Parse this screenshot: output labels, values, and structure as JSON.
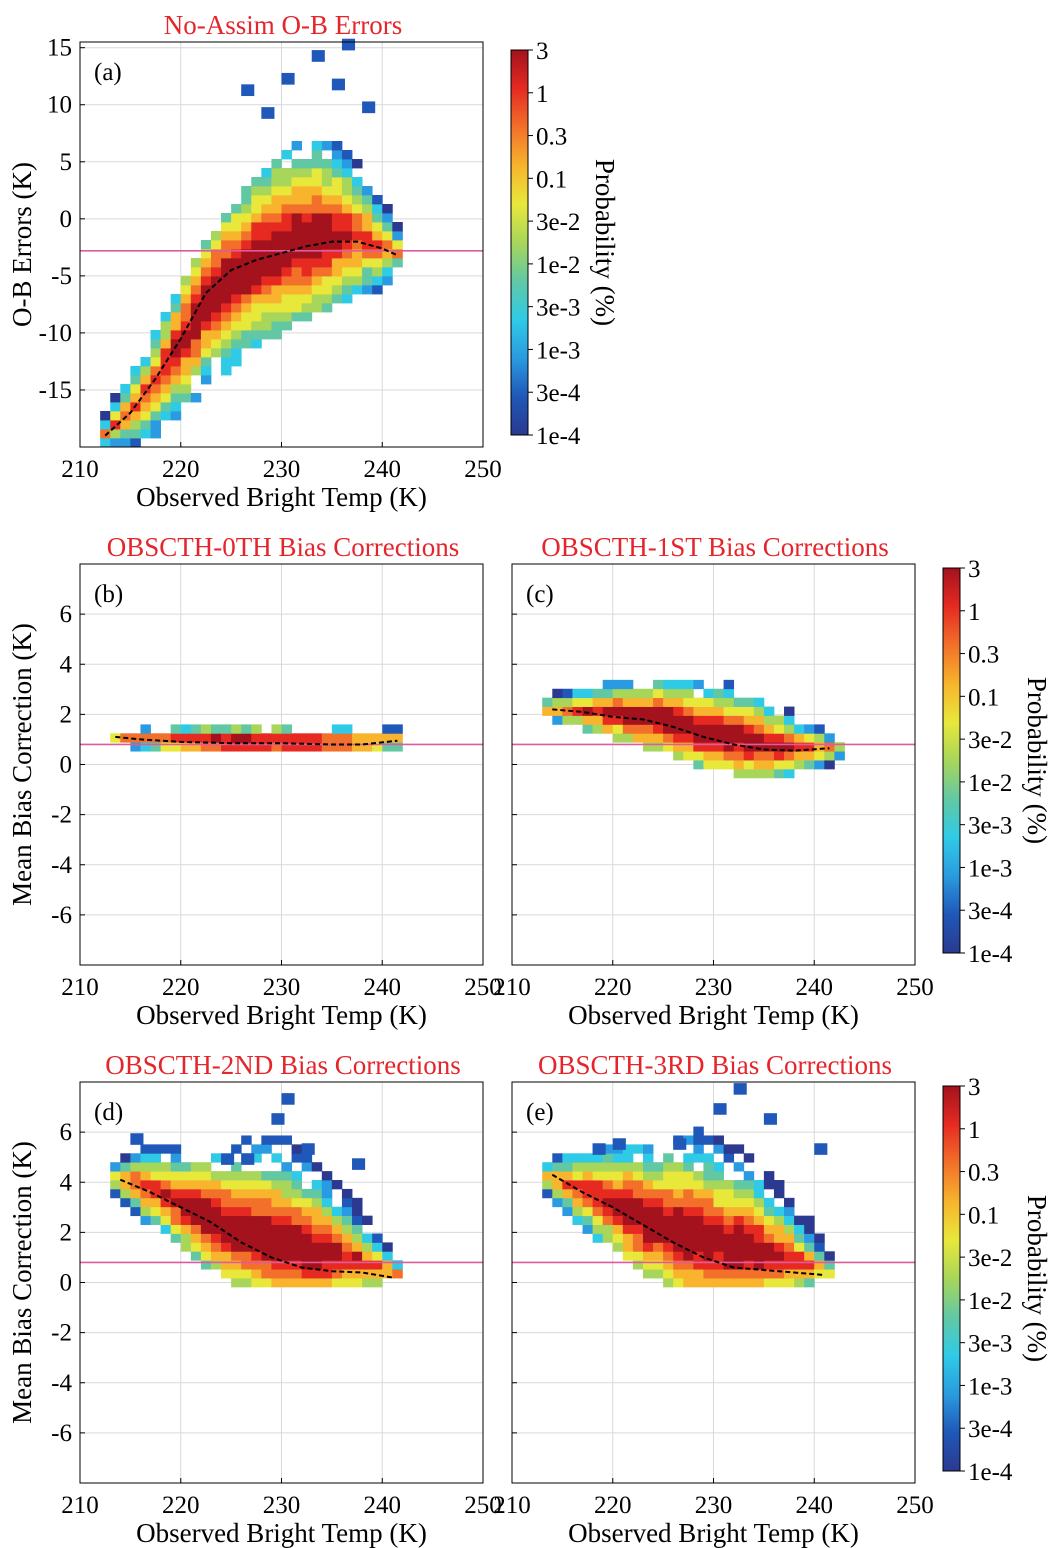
{
  "colorbar": {
    "label": "Probability (%)",
    "ticks": [
      "3",
      "1",
      "0.3",
      "0.1",
      "3e-2",
      "1e-2",
      "3e-3",
      "1e-3",
      "3e-4",
      "1e-4"
    ],
    "colors": [
      "#2b3990",
      "#1f58b8",
      "#2a9be0",
      "#2fcbe6",
      "#62c8a4",
      "#a8d65a",
      "#e8e83a",
      "#f7b42c",
      "#f2702a",
      "#e62a22",
      "#a3121d"
    ]
  },
  "colors": {
    "title": "#e4262c",
    "reference_line": "#e05a9c",
    "mean_line": "#000000",
    "grid": "#d9d9d9"
  },
  "chart_data": [
    {
      "id": "a",
      "type": "heatmap",
      "title": "No-Assim O-B Errors",
      "panel_label": "(a)",
      "xlabel": "Observed Bright Temp (K)",
      "ylabel": "O-B Errors (K)",
      "xlim": [
        210,
        250
      ],
      "ylim": [
        -20,
        15.5
      ],
      "xticks": [
        210,
        220,
        230,
        240,
        250
      ],
      "yticks": [
        -15,
        -10,
        -5,
        0,
        5,
        10,
        15
      ],
      "reference_line_y": -2.8,
      "mean_curve": [
        [
          212.5,
          -19
        ],
        [
          215,
          -17
        ],
        [
          217.5,
          -14
        ],
        [
          220,
          -10.5
        ],
        [
          222.5,
          -6.5
        ],
        [
          225,
          -4.5
        ],
        [
          227.5,
          -3.6
        ],
        [
          230,
          -3
        ],
        [
          232.5,
          -2.4
        ],
        [
          235,
          -2
        ],
        [
          237.5,
          -2
        ],
        [
          240,
          -2.6
        ],
        [
          241.5,
          -3.2
        ]
      ],
      "shape": [
        [
          212.5,
          -20,
          -17
        ],
        [
          215,
          -20,
          -13
        ],
        [
          217.5,
          -19,
          -10
        ],
        [
          220,
          -17,
          -6
        ],
        [
          222.5,
          -15,
          -2
        ],
        [
          225,
          -13,
          1
        ],
        [
          227.5,
          -11,
          4
        ],
        [
          230,
          -10,
          6
        ],
        [
          232.5,
          -9,
          7
        ],
        [
          235,
          -8,
          7
        ],
        [
          237.5,
          -7,
          5
        ],
        [
          240,
          -6,
          2
        ],
        [
          242,
          -4,
          -1
        ]
      ],
      "scatter_top": [
        [
          230,
          12
        ],
        [
          233,
          14
        ],
        [
          235,
          11.5
        ],
        [
          238,
          9.5
        ],
        [
          226,
          11
        ],
        [
          228,
          9
        ],
        [
          236,
          15
        ]
      ]
    },
    {
      "id": "b",
      "type": "heatmap",
      "title": "OBSCTH-0TH Bias Corrections",
      "panel_label": "(b)",
      "xlabel": "Observed Bright Temp (K)",
      "ylabel": "Mean Bias Correction (K)",
      "xlim": [
        210,
        250
      ],
      "ylim": [
        -8,
        8
      ],
      "xticks": [
        210,
        220,
        230,
        240,
        250
      ],
      "yticks": [
        -6,
        -4,
        -2,
        0,
        2,
        4,
        6
      ],
      "reference_line_y": 0.8,
      "mean_curve": [
        [
          213.5,
          1.1
        ],
        [
          216,
          1.0
        ],
        [
          220,
          0.9
        ],
        [
          225,
          0.85
        ],
        [
          230,
          0.85
        ],
        [
          235,
          0.8
        ],
        [
          238,
          0.8
        ],
        [
          241.5,
          0.95
        ]
      ],
      "shape": [
        [
          213.5,
          0.9,
          1.4
        ],
        [
          216,
          0.6,
          1.5
        ],
        [
          220,
          0.5,
          1.6
        ],
        [
          225,
          0.4,
          1.6
        ],
        [
          230,
          0.4,
          1.6
        ],
        [
          235,
          0.4,
          1.6
        ],
        [
          240,
          0.5,
          1.6
        ],
        [
          242,
          0.6,
          1.5
        ]
      ]
    },
    {
      "id": "c",
      "type": "heatmap",
      "title": "OBSCTH-1ST Bias Corrections",
      "panel_label": "(c)",
      "xlabel": "Observed Bright Temp (K)",
      "ylabel": "",
      "xlim": [
        210,
        250
      ],
      "ylim": [
        -8,
        8
      ],
      "xticks": [
        210,
        220,
        230,
        240,
        250
      ],
      "yticks": [
        -6,
        -4,
        -2,
        0,
        2,
        4,
        6
      ],
      "reference_line_y": 0.8,
      "mean_curve": [
        [
          214,
          2.2
        ],
        [
          217,
          2.1
        ],
        [
          220,
          1.9
        ],
        [
          223,
          1.8
        ],
        [
          226,
          1.5
        ],
        [
          229,
          1.1
        ],
        [
          232,
          0.8
        ],
        [
          235,
          0.6
        ],
        [
          238,
          0.55
        ],
        [
          241.5,
          0.65
        ]
      ],
      "shape": [
        [
          213,
          1.8,
          2.7
        ],
        [
          217,
          1.3,
          3.1
        ],
        [
          221,
          0.9,
          3.3
        ],
        [
          225,
          0.4,
          3.4
        ],
        [
          229,
          -0.1,
          3.4
        ],
        [
          233,
          -0.4,
          3.1
        ],
        [
          237,
          -0.4,
          2.3
        ],
        [
          241,
          -0.2,
          1.3
        ],
        [
          242.5,
          0.2,
          0.9
        ]
      ]
    },
    {
      "id": "d",
      "type": "heatmap",
      "title": "OBSCTH-2ND Bias Corrections",
      "panel_label": "(d)",
      "xlabel": "Observed Bright Temp (K)",
      "ylabel": "Mean Bias Correction (K)",
      "xlim": [
        210,
        250
      ],
      "ylim": [
        -8,
        8
      ],
      "xticks": [
        210,
        220,
        230,
        240,
        250
      ],
      "yticks": [
        -6,
        -4,
        -2,
        0,
        2,
        4,
        6
      ],
      "reference_line_y": 0.8,
      "mean_curve": [
        [
          214,
          4.1
        ],
        [
          217,
          3.6
        ],
        [
          220,
          3.0
        ],
        [
          223,
          2.4
        ],
        [
          226,
          1.6
        ],
        [
          229,
          1.0
        ],
        [
          232,
          0.6
        ],
        [
          235,
          0.45
        ],
        [
          238,
          0.4
        ],
        [
          241,
          0.2
        ]
      ],
      "shape": [
        [
          213,
          3.6,
          4.6
        ],
        [
          216,
          2.6,
          5.6
        ],
        [
          219,
          1.8,
          5.4
        ],
        [
          222,
          0.8,
          5.2
        ],
        [
          225,
          0.0,
          5.4
        ],
        [
          228,
          -0.2,
          6.0
        ],
        [
          231,
          -0.2,
          5.8
        ],
        [
          234,
          -0.2,
          4.8
        ],
        [
          237,
          -0.2,
          3.6
        ],
        [
          240,
          0.0,
          2.0
        ],
        [
          242,
          0.1,
          0.9
        ]
      ],
      "scatter_top": [
        [
          230,
          7.2
        ],
        [
          229,
          6.4
        ],
        [
          224,
          4.8
        ],
        [
          232,
          5.2
        ],
        [
          237,
          4.6
        ],
        [
          215,
          5.6
        ],
        [
          226,
          4.8
        ]
      ]
    },
    {
      "id": "e",
      "type": "heatmap",
      "title": "OBSCTH-3RD Bias Corrections",
      "panel_label": "(e)",
      "xlabel": "Observed Bright Temp (K)",
      "ylabel": "",
      "xlim": [
        210,
        250
      ],
      "ylim": [
        -8,
        8
      ],
      "xticks": [
        210,
        220,
        230,
        240,
        250
      ],
      "yticks": [
        -6,
        -4,
        -2,
        0,
        2,
        4,
        6
      ],
      "reference_line_y": 0.8,
      "mean_curve": [
        [
          214,
          4.3
        ],
        [
          217,
          3.6
        ],
        [
          220,
          3.0
        ],
        [
          223,
          2.3
        ],
        [
          226,
          1.6
        ],
        [
          229,
          1.0
        ],
        [
          232,
          0.6
        ],
        [
          235,
          0.5
        ],
        [
          238,
          0.4
        ],
        [
          241,
          0.3
        ]
      ],
      "shape": [
        [
          213,
          3.4,
          4.6
        ],
        [
          216,
          2.4,
          5.4
        ],
        [
          219,
          1.6,
          5.6
        ],
        [
          222,
          0.6,
          5.4
        ],
        [
          225,
          0.0,
          5.8
        ],
        [
          228,
          -0.2,
          6.2
        ],
        [
          231,
          -0.2,
          5.8
        ],
        [
          234,
          -0.2,
          5.0
        ],
        [
          237,
          -0.2,
          4.0
        ],
        [
          240,
          0.0,
          2.2
        ],
        [
          242,
          0.2,
          0.9
        ]
      ],
      "scatter_top": [
        [
          232,
          7.6
        ],
        [
          230,
          6.8
        ],
        [
          235,
          6.4
        ],
        [
          240,
          5.2
        ],
        [
          226,
          5.4
        ],
        [
          220,
          5.4
        ],
        [
          218,
          5.2
        ]
      ]
    }
  ]
}
